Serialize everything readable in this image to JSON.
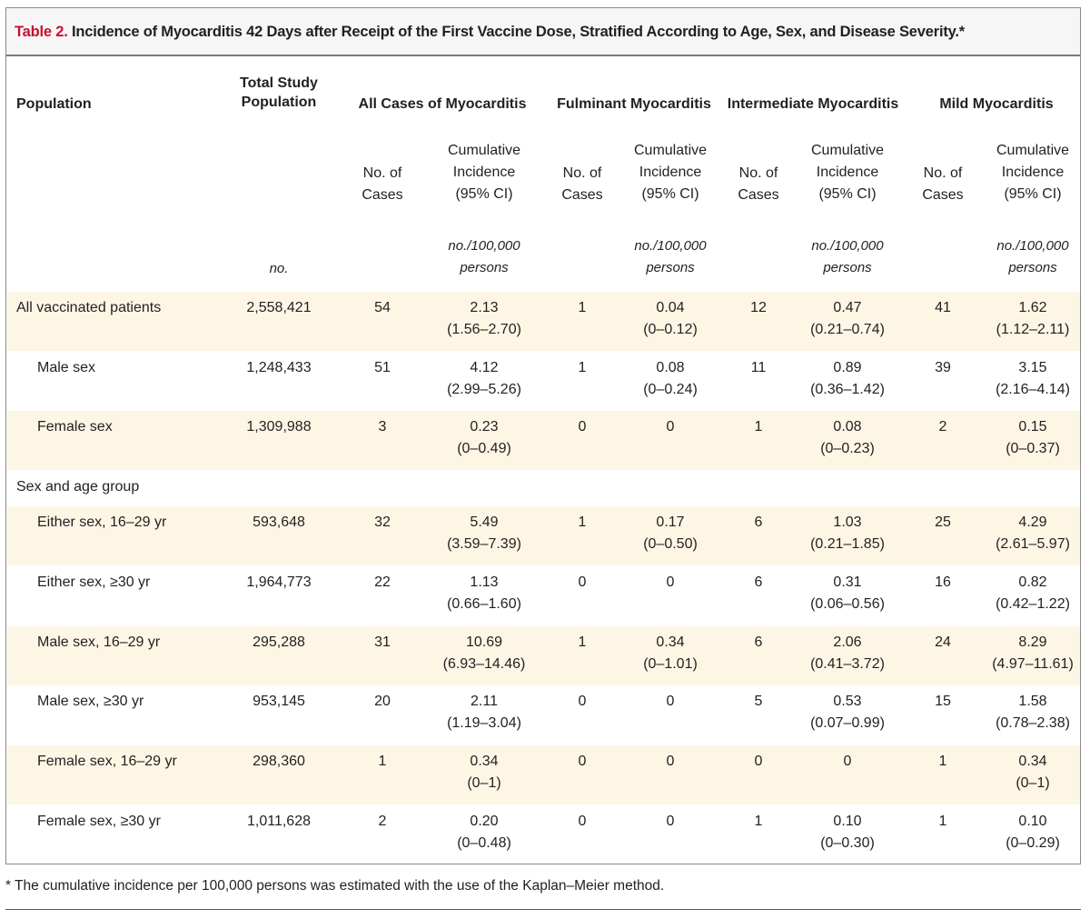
{
  "title": {
    "number": "Table 2.",
    "text": "Incidence of Myocarditis 42 Days after Receipt of the First Vaccine Dose, Stratified According to Age, Sex, and Disease Severity.*"
  },
  "headers": {
    "population": "Population",
    "total_study_population": "Total Study\nPopulation",
    "total_unit": "no.",
    "groups": [
      "All Cases of Myocarditis",
      "Fulminant Myocarditis",
      "Intermediate Myocarditis",
      "Mild Myocarditis"
    ],
    "no_of_cases": "No. of\nCases",
    "cumulative_incidence": "Cumulative\nIncidence\n(95% CI)",
    "incidence_unit": "no./100,000\npersons"
  },
  "rows": [
    {
      "label": "All vaccinated patients",
      "indent": false,
      "section": false,
      "total": "2,558,421",
      "all_n": "54",
      "all_ci": "2.13\n(1.56–2.70)",
      "ful_n": "1",
      "ful_ci": "0.04\n(0–0.12)",
      "int_n": "12",
      "int_ci": "0.47\n(0.21–0.74)",
      "mild_n": "41",
      "mild_ci": "1.62\n(1.12–2.11)"
    },
    {
      "label": "Male sex",
      "indent": true,
      "section": false,
      "total": "1,248,433",
      "all_n": "51",
      "all_ci": "4.12\n(2.99–5.26)",
      "ful_n": "1",
      "ful_ci": "0.08\n(0–0.24)",
      "int_n": "11",
      "int_ci": "0.89\n(0.36–1.42)",
      "mild_n": "39",
      "mild_ci": "3.15\n(2.16–4.14)"
    },
    {
      "label": "Female sex",
      "indent": true,
      "section": false,
      "total": "1,309,988",
      "all_n": "3",
      "all_ci": "0.23\n(0–0.49)",
      "ful_n": "0",
      "ful_ci": "0",
      "int_n": "1",
      "int_ci": "0.08\n(0–0.23)",
      "mild_n": "2",
      "mild_ci": "0.15\n(0–0.37)"
    },
    {
      "label": "Sex and age group",
      "indent": false,
      "section": true
    },
    {
      "label": "Either sex, 16–29 yr",
      "indent": true,
      "section": false,
      "total": "593,648",
      "all_n": "32",
      "all_ci": "5.49\n(3.59–7.39)",
      "ful_n": "1",
      "ful_ci": "0.17\n(0–0.50)",
      "int_n": "6",
      "int_ci": "1.03\n(0.21–1.85)",
      "mild_n": "25",
      "mild_ci": "4.29\n(2.61–5.97)"
    },
    {
      "label": "Either sex, ≥30 yr",
      "indent": true,
      "section": false,
      "total": "1,964,773",
      "all_n": "22",
      "all_ci": "1.13\n(0.66–1.60)",
      "ful_n": "0",
      "ful_ci": "0",
      "int_n": "6",
      "int_ci": "0.31\n(0.06–0.56)",
      "mild_n": "16",
      "mild_ci": "0.82\n(0.42–1.22)"
    },
    {
      "label": "Male sex, 16–29 yr",
      "indent": true,
      "section": false,
      "total": "295,288",
      "all_n": "31",
      "all_ci": "10.69\n(6.93–14.46)",
      "ful_n": "1",
      "ful_ci": "0.34\n(0–1.01)",
      "int_n": "6",
      "int_ci": "2.06\n(0.41–3.72)",
      "mild_n": "24",
      "mild_ci": "8.29\n(4.97–11.61)"
    },
    {
      "label": "Male sex, ≥30 yr",
      "indent": true,
      "section": false,
      "total": "953,145",
      "all_n": "20",
      "all_ci": "2.11\n(1.19–3.04)",
      "ful_n": "0",
      "ful_ci": "0",
      "int_n": "5",
      "int_ci": "0.53\n(0.07–0.99)",
      "mild_n": "15",
      "mild_ci": "1.58\n(0.78–2.38)"
    },
    {
      "label": "Female sex, 16–29 yr",
      "indent": true,
      "section": false,
      "total": "298,360",
      "all_n": "1",
      "all_ci": "0.34\n(0–1)",
      "ful_n": "0",
      "ful_ci": "0",
      "int_n": "0",
      "int_ci": "0",
      "mild_n": "1",
      "mild_ci": "0.34\n(0–1)"
    },
    {
      "label": "Female sex, ≥30 yr",
      "indent": true,
      "section": false,
      "total": "1,011,628",
      "all_n": "2",
      "all_ci": "0.20\n(0–0.48)",
      "ful_n": "0",
      "ful_ci": "0",
      "int_n": "1",
      "int_ci": "0.10\n(0–0.30)",
      "mild_n": "1",
      "mild_ci": "0.10\n(0–0.29)"
    }
  ],
  "footnote": "* The cumulative incidence per 100,000 persons was estimated with the use of the Kaplan–Meier method.",
  "colors": {
    "band": "#fdf6e5",
    "title_number": "#c8102e",
    "title_bar": "#f6f6f6"
  }
}
